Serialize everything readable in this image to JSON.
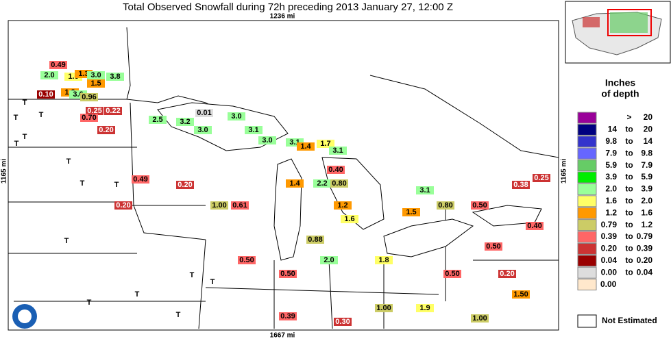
{
  "header": {
    "title": "Total Observed Snowfall during 72h preceding 2013 January 27, 12:00 Z",
    "top_scale": "1236 mi",
    "bottom_scale": "1667 mi",
    "left_scale": "1165 mi",
    "right_scale": "1165 mi"
  },
  "legend": {
    "title_line1": "Inches",
    "title_line2": "of depth",
    "rows": [
      {
        "parts": [
          ">",
          "20"
        ],
        "color": "#990099"
      },
      {
        "parts": [
          "14",
          "to",
          "20"
        ],
        "color": "#000080"
      },
      {
        "parts": [
          "9.8",
          "to",
          "14"
        ],
        "color": "#3333cc"
      },
      {
        "parts": [
          "7.9",
          "to",
          "9.8"
        ],
        "color": "#6666ff"
      },
      {
        "parts": [
          "5.9",
          "to",
          "7.9"
        ],
        "color": "#66cc66"
      },
      {
        "parts": [
          "3.9",
          "to",
          "5.9"
        ],
        "color": "#00ee00"
      },
      {
        "parts": [
          "2.0",
          "to",
          "3.9"
        ],
        "color": "#99ff99"
      },
      {
        "parts": [
          "1.6",
          "to",
          "2.0"
        ],
        "color": "#ffff66"
      },
      {
        "parts": [
          "1.2",
          "to",
          "1.6"
        ],
        "color": "#ff9900"
      },
      {
        "parts": [
          "0.79",
          "to",
          "1.2"
        ],
        "color": "#cccc66"
      },
      {
        "parts": [
          "0.39",
          "to",
          "0.79"
        ],
        "color": "#ff6666"
      },
      {
        "parts": [
          "0.20",
          "to",
          "0.39"
        ],
        "color": "#cc3333"
      },
      {
        "parts": [
          "0.04",
          "to",
          "0.20"
        ],
        "color": "#990000"
      },
      {
        "parts": [
          "0.00",
          "to",
          "0.04"
        ],
        "color": "#dddddd"
      },
      {
        "parts": [
          "0.00"
        ],
        "color": "#ffe8cc"
      }
    ],
    "not_estimated": "Not Estimated"
  },
  "stations": [
    "0.49",
    "2.0",
    "1.6",
    "1.3",
    "3.0",
    "1.5",
    "3.8",
    "0.10",
    "1.2",
    "3.6",
    "0.96",
    "T",
    "T",
    "T",
    "T",
    "T",
    "0.25",
    "0.22",
    "0.70",
    "0.20",
    "0.01",
    "3.0",
    "3.2",
    "2.5",
    "3.0",
    "3.1",
    "3.0",
    "3.1",
    "1.4",
    "1.7",
    "3.1",
    "T",
    "T",
    "T",
    "0.49",
    "0.20",
    "0.20",
    "1.00",
    "0.61",
    "1.4",
    "2.2",
    "0.80",
    "0.40",
    "3.1",
    "1.2",
    "0.88",
    "1.6",
    "0.50",
    "0.50",
    "2.0",
    "1.8",
    "1.5",
    "0.80",
    "0.50",
    "0.38",
    "0.25",
    "0.40",
    "0.50",
    "0.50",
    "1.9",
    "1.00",
    "0.30",
    "0.39",
    "T",
    "T",
    "T",
    "T",
    "T",
    "T",
    "1.00",
    "1.50",
    "0.20"
  ]
}
